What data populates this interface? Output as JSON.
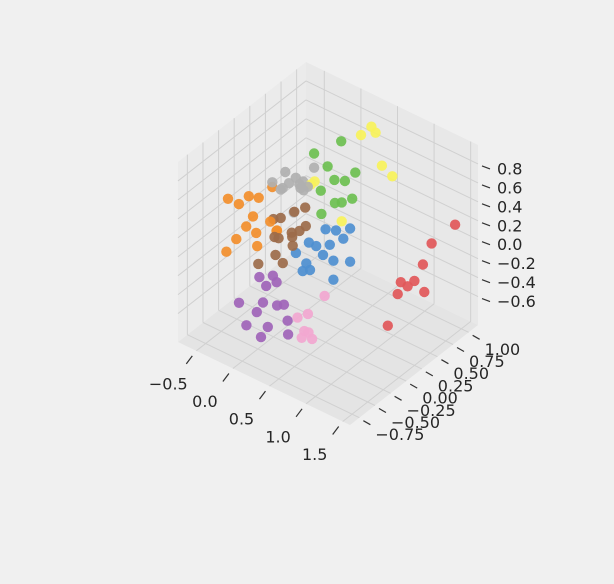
{
  "chart_data": {
    "type": "scatter",
    "projection": "3d",
    "title": "",
    "xlabel": "",
    "ylabel": "",
    "zlabel": "",
    "grid": true,
    "legend": "none",
    "colors": {
      "pane": "#f0f0f0",
      "grid": "#d0d0d0",
      "red": "#e15759",
      "orange": "#f28e2b",
      "green": "#6cbf50",
      "yellow": "#f7f25a",
      "gray": "#b0b0b0",
      "brown": "#9c6b4a",
      "blue": "#4e8fd0",
      "purple": "#a064b8",
      "pink": "#f2a7d0"
    },
    "x_ticks": [
      "−0.5",
      "0.0",
      "0.5",
      "1.0",
      "1.5"
    ],
    "y_ticks": [
      "−0.75",
      "−0.50",
      "−0.25",
      "0.00",
      "0.25",
      "0.50",
      "0.75",
      "1.00"
    ],
    "z_ticks": [
      "−0.6",
      "−0.4",
      "−0.2",
      "0.0",
      "0.2",
      "0.4",
      "0.6",
      "0.8"
    ],
    "series": [
      {
        "color": "red",
        "points": [
          [
            1.5,
            0.9,
            0.25
          ],
          [
            1.35,
            0.7,
            0.1
          ],
          [
            1.3,
            0.62,
            -0.1
          ],
          [
            1.15,
            0.55,
            -0.35
          ],
          [
            1.1,
            0.5,
            -0.3
          ],
          [
            1.1,
            0.45,
            -0.4
          ],
          [
            1.2,
            0.6,
            -0.3
          ],
          [
            1.25,
            0.7,
            -0.45
          ],
          [
            1.05,
            0.35,
            -0.7
          ]
        ]
      },
      {
        "color": "orange",
        "points": [
          [
            -0.75,
            -0.1,
            0.2
          ],
          [
            -0.6,
            -0.1,
            0.2
          ],
          [
            -0.55,
            0.0,
            0.25
          ],
          [
            -0.45,
            -0.05,
            0.1
          ],
          [
            -0.5,
            0.1,
            0.2
          ],
          [
            -0.5,
            -0.1,
            0.0
          ],
          [
            -0.45,
            0.0,
            -0.1
          ],
          [
            -0.3,
            0.05,
            0.05
          ],
          [
            -0.35,
            -0.1,
            -0.15
          ],
          [
            -0.55,
            -0.2,
            -0.1
          ],
          [
            -0.6,
            -0.3,
            -0.2
          ],
          [
            -0.25,
            0.1,
            -0.05
          ],
          [
            -0.4,
            0.2,
            0.3
          ],
          [
            -0.3,
            0.15,
            -0.1
          ]
        ]
      },
      {
        "color": "gray",
        "points": [
          [
            -0.35,
            0.35,
            0.4
          ],
          [
            -0.3,
            0.35,
            0.3
          ],
          [
            -0.25,
            0.4,
            0.35
          ],
          [
            -0.2,
            0.4,
            0.3
          ],
          [
            -0.15,
            0.4,
            0.35
          ],
          [
            -0.1,
            0.35,
            0.3
          ],
          [
            -0.4,
            0.2,
            0.35
          ],
          [
            -0.3,
            0.25,
            0.3
          ],
          [
            -0.2,
            0.1,
            0.4
          ],
          [
            -0.1,
            0.3,
            0.35
          ],
          [
            0.0,
            0.3,
            0.4
          ],
          [
            -0.15,
            0.25,
            0.1
          ],
          [
            0.0,
            0.4,
            0.55
          ]
        ]
      },
      {
        "color": "brown",
        "points": [
          [
            -0.3,
            0.1,
            0.05
          ],
          [
            -0.2,
            0.1,
            0.1
          ],
          [
            -0.1,
            0.2,
            0.15
          ],
          [
            -0.2,
            0.0,
            -0.05
          ],
          [
            -0.1,
            -0.05,
            0.0
          ],
          [
            -0.05,
            0.1,
            0.0
          ],
          [
            -0.1,
            -0.1,
            -0.15
          ],
          [
            0.0,
            0.05,
            0.0
          ],
          [
            0.0,
            -0.1,
            -0.2
          ],
          [
            0.05,
            0.0,
            -0.05
          ],
          [
            -0.25,
            -0.2,
            -0.25
          ],
          [
            0.1,
            0.15,
            0.1
          ],
          [
            0.05,
            0.2,
            0.25
          ],
          [
            0.1,
            0.05,
            0.1
          ]
        ]
      },
      {
        "color": "green",
        "points": [
          [
            0.2,
            0.6,
            0.8
          ],
          [
            0.0,
            0.4,
            0.7
          ],
          [
            0.1,
            0.5,
            0.55
          ],
          [
            0.15,
            0.55,
            0.4
          ],
          [
            0.25,
            0.6,
            0.4
          ],
          [
            0.05,
            0.45,
            0.3
          ],
          [
            0.2,
            0.5,
            0.2
          ],
          [
            0.25,
            0.55,
            0.2
          ],
          [
            0.35,
            0.6,
            0.25
          ],
          [
            0.1,
            0.4,
            0.1
          ],
          [
            0.35,
            0.65,
            0.5
          ]
        ]
      },
      {
        "color": "yellow",
        "points": [
          [
            0.4,
            0.85,
            0.9
          ],
          [
            0.3,
            0.8,
            0.8
          ],
          [
            0.5,
            0.9,
            0.5
          ],
          [
            0.6,
            0.95,
            0.4
          ],
          [
            0.0,
            0.35,
            0.4
          ],
          [
            0.05,
            0.35,
            0.45
          ],
          [
            0.25,
            0.55,
            0.0
          ],
          [
            0.5,
            0.8,
            0.9
          ]
        ]
      },
      {
        "color": "blue",
        "points": [
          [
            0.2,
            0.35,
            0.0
          ],
          [
            0.3,
            0.4,
            0.0
          ],
          [
            0.1,
            0.2,
            -0.1
          ],
          [
            0.2,
            0.2,
            -0.1
          ],
          [
            0.3,
            0.3,
            -0.1
          ],
          [
            0.4,
            0.4,
            -0.05
          ],
          [
            0.25,
            0.25,
            -0.2
          ],
          [
            0.35,
            0.3,
            -0.25
          ],
          [
            0.05,
            0.05,
            -0.15
          ],
          [
            0.15,
            0.1,
            -0.25
          ],
          [
            0.2,
            0.1,
            -0.3
          ],
          [
            0.1,
            0.1,
            -0.35
          ],
          [
            0.45,
            0.45,
            -0.3
          ],
          [
            0.35,
            0.3,
            -0.45
          ],
          [
            0.45,
            0.45,
            0.05
          ]
        ]
      },
      {
        "color": "purple",
        "points": [
          [
            -0.15,
            -0.3,
            -0.3
          ],
          [
            -0.05,
            -0.2,
            -0.3
          ],
          [
            0.0,
            -0.2,
            -0.35
          ],
          [
            -0.1,
            -0.25,
            -0.4
          ],
          [
            -0.1,
            -0.3,
            -0.55
          ],
          [
            -0.3,
            -0.45,
            -0.55
          ],
          [
            -0.1,
            -0.4,
            -0.6
          ],
          [
            0.05,
            -0.25,
            -0.55
          ],
          [
            0.1,
            -0.2,
            -0.55
          ],
          [
            0.05,
            -0.4,
            -0.7
          ],
          [
            0.15,
            -0.2,
            -0.7
          ],
          [
            0.2,
            -0.25,
            -0.8
          ],
          [
            -0.2,
            -0.45,
            -0.75
          ],
          [
            0.0,
            -0.45,
            -0.8
          ]
        ]
      },
      {
        "color": "pink",
        "points": [
          [
            0.2,
            -0.1,
            -0.7
          ],
          [
            0.3,
            -0.05,
            -0.65
          ],
          [
            0.35,
            -0.1,
            -0.8
          ],
          [
            0.4,
            -0.1,
            -0.85
          ],
          [
            0.3,
            -0.15,
            -0.85
          ],
          [
            0.4,
            0.1,
            -0.5
          ],
          [
            0.25,
            -0.05,
            -0.85
          ]
        ]
      }
    ]
  }
}
